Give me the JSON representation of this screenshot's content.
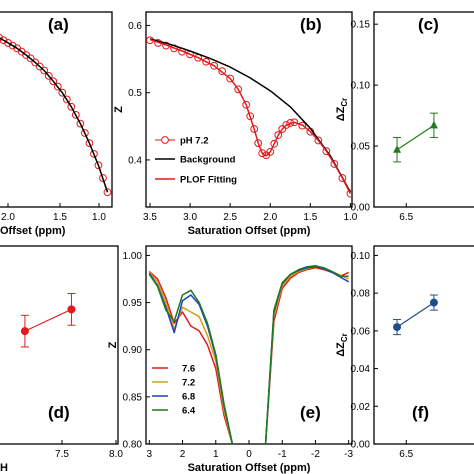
{
  "chart_data": [
    {
      "id": "a",
      "panel_label": "(a)",
      "type": "line",
      "xlabel": "Offset (ppm)",
      "xticks": [
        "2.0",
        "1.5",
        "1.0"
      ],
      "xlim": [
        2.3,
        0.95
      ],
      "ylim": [
        0.33,
        0.62
      ],
      "series": [
        {
          "name": "",
          "kind": "markers",
          "color": "#e31a1c",
          "x": [
            2.25,
            2.2,
            2.15,
            2.1,
            2.05,
            2.0,
            1.95,
            1.9,
            1.85,
            1.8,
            1.75,
            1.7,
            1.65,
            1.6,
            1.55,
            1.5,
            1.45,
            1.4,
            1.35,
            1.3,
            1.25,
            1.2,
            1.15,
            1.1,
            1.05,
            1.0
          ],
          "y": [
            0.586,
            0.582,
            0.578,
            0.574,
            0.57,
            0.566,
            0.561,
            0.556,
            0.551,
            0.545,
            0.539,
            0.533,
            0.525,
            0.517,
            0.509,
            0.5,
            0.49,
            0.479,
            0.467,
            0.454,
            0.44,
            0.425,
            0.409,
            0.392,
            0.373,
            0.352
          ]
        },
        {
          "name": "",
          "kind": "line",
          "color": "#000000",
          "x": [
            2.3,
            2.2,
            2.1,
            2.0,
            1.9,
            1.8,
            1.7,
            1.6,
            1.5,
            1.4,
            1.3,
            1.2,
            1.1,
            1.0
          ],
          "y": [
            0.59,
            0.582,
            0.574,
            0.566,
            0.556,
            0.545,
            0.533,
            0.517,
            0.5,
            0.479,
            0.454,
            0.425,
            0.392,
            0.352
          ]
        }
      ]
    },
    {
      "id": "b",
      "panel_label": "(b)",
      "type": "line",
      "ylabel": "Z",
      "xlabel": "Saturation Offset (ppm)",
      "xticks": [
        "3.5",
        "3.0",
        "2.5",
        "2.0",
        "1.5",
        "1.0"
      ],
      "yticks": [
        "0.4",
        "0.5",
        "0.6"
      ],
      "xlim": [
        3.55,
        0.98
      ],
      "ylim": [
        0.33,
        0.62
      ],
      "legend": [
        "pH 7.2",
        "Background",
        "PLOF Fitting"
      ],
      "legend_position": "bottom-left",
      "series": [
        {
          "name": "pH 7.2",
          "kind": "markers",
          "color": "#e31a1c",
          "x": [
            3.5,
            3.4,
            3.3,
            3.2,
            3.1,
            3.0,
            2.9,
            2.8,
            2.7,
            2.6,
            2.5,
            2.4,
            2.3,
            2.25,
            2.2,
            2.15,
            2.1,
            2.05,
            2.0,
            1.95,
            1.9,
            1.85,
            1.8,
            1.75,
            1.7,
            1.6,
            1.5,
            1.4,
            1.3,
            1.2,
            1.1,
            1.0
          ],
          "y": [
            0.578,
            0.574,
            0.57,
            0.566,
            0.561,
            0.557,
            0.552,
            0.546,
            0.54,
            0.532,
            0.521,
            0.505,
            0.482,
            0.465,
            0.446,
            0.425,
            0.41,
            0.407,
            0.412,
            0.424,
            0.437,
            0.446,
            0.452,
            0.455,
            0.456,
            0.451,
            0.442,
            0.429,
            0.413,
            0.394,
            0.373,
            0.35
          ]
        },
        {
          "name": "Background",
          "kind": "line",
          "color": "#000000",
          "x": [
            3.5,
            3.25,
            3.0,
            2.75,
            2.5,
            2.25,
            2.0,
            1.75,
            1.5,
            1.25,
            1.0
          ],
          "y": [
            0.58,
            0.572,
            0.562,
            0.551,
            0.538,
            0.522,
            0.503,
            0.479,
            0.447,
            0.406,
            0.352
          ]
        },
        {
          "name": "PLOF Fitting",
          "kind": "line",
          "color": "#e31a1c",
          "x": [
            3.5,
            3.3,
            3.1,
            2.9,
            2.7,
            2.5,
            2.4,
            2.3,
            2.2,
            2.15,
            2.1,
            2.05,
            2.0,
            1.95,
            1.9,
            1.85,
            1.8,
            1.7,
            1.6,
            1.5,
            1.4,
            1.3,
            1.2,
            1.1,
            1.0
          ],
          "y": [
            0.579,
            0.571,
            0.562,
            0.552,
            0.54,
            0.521,
            0.505,
            0.482,
            0.446,
            0.425,
            0.41,
            0.406,
            0.412,
            0.424,
            0.437,
            0.446,
            0.452,
            0.456,
            0.452,
            0.442,
            0.429,
            0.413,
            0.394,
            0.373,
            0.35
          ]
        }
      ]
    },
    {
      "id": "c",
      "panel_label": "(c)",
      "type": "line",
      "ylabel": "ΔZ",
      "ylabel_sub": "Cr",
      "xticks": [
        "6.5"
      ],
      "yticks": [
        "0.00",
        "0.05",
        "0.10",
        "0.15"
      ],
      "xlim": [
        6.15,
        7.3
      ],
      "ylim": [
        0.0,
        0.16
      ],
      "series": [
        {
          "name": "",
          "kind": "markers-errorbars",
          "color": "#1e7b1e",
          "marker": "triangle",
          "x": [
            6.4,
            6.8
          ],
          "y": [
            0.047,
            0.067
          ],
          "err": [
            0.01,
            0.01
          ]
        }
      ]
    },
    {
      "id": "d",
      "panel_label": "(d)",
      "type": "scatter",
      "xlabel": "H",
      "xticks": [
        "7.5",
        "8.0"
      ],
      "xlim": [
        6.9,
        8.0
      ],
      "ylim": [
        0.0,
        1.0
      ],
      "series": [
        {
          "name": "",
          "kind": "markers-errorbars",
          "color": "#e31a1c",
          "marker": "circle",
          "x": [
            7.2,
            7.6
          ],
          "y": [
            0.57,
            0.68
          ],
          "err": [
            0.08,
            0.08
          ]
        }
      ]
    },
    {
      "id": "e",
      "panel_label": "(e)",
      "type": "line",
      "ylabel": "Z",
      "xlabel": "Saturation Offset (ppm)",
      "xticks": [
        "3",
        "2",
        "1",
        "0",
        "-1",
        "-2",
        "-3"
      ],
      "yticks": [
        "0.80",
        "0.85",
        "0.90",
        "0.95",
        "1.00"
      ],
      "xlim": [
        3.1,
        -3.1
      ],
      "ylim": [
        0.8,
        1.01
      ],
      "legend": [
        "7.6",
        "7.2",
        "6.8",
        "6.4"
      ],
      "legend_position": "bottom-left",
      "x": [
        3.0,
        2.75,
        2.5,
        2.25,
        2.0,
        1.75,
        1.5,
        1.25,
        1.0,
        0.75,
        0.5,
        0.45,
        -0.45,
        -0.5,
        -0.75,
        -1.0,
        -1.25,
        -1.5,
        -1.75,
        -2.0,
        -2.25,
        -2.5,
        -2.75,
        -3.0
      ],
      "series": [
        {
          "name": "7.6",
          "color": "#e31a1c",
          "y": [
            0.983,
            0.975,
            0.955,
            0.928,
            0.94,
            0.925,
            0.92,
            0.905,
            0.88,
            0.83,
            0.8,
            0.79,
            0.79,
            0.8,
            0.93,
            0.965,
            0.976,
            0.982,
            0.985,
            0.987,
            0.985,
            0.982,
            0.978,
            0.982
          ]
        },
        {
          "name": "7.2",
          "color": "#d4a017",
          "y": [
            0.982,
            0.972,
            0.95,
            0.922,
            0.945,
            0.94,
            0.935,
            0.915,
            0.888,
            0.835,
            0.8,
            0.79,
            0.79,
            0.8,
            0.935,
            0.968,
            0.978,
            0.983,
            0.986,
            0.988,
            0.986,
            0.983,
            0.979,
            0.975
          ]
        },
        {
          "name": "6.8",
          "color": "#1f3fbf",
          "y": [
            0.981,
            0.968,
            0.945,
            0.918,
            0.952,
            0.958,
            0.948,
            0.925,
            0.893,
            0.84,
            0.8,
            0.79,
            0.79,
            0.8,
            0.94,
            0.97,
            0.98,
            0.984,
            0.987,
            0.988,
            0.986,
            0.982,
            0.977,
            0.972
          ]
        },
        {
          "name": "6.4",
          "color": "#1e7b1e",
          "y": [
            0.98,
            0.967,
            0.942,
            0.93,
            0.958,
            0.963,
            0.95,
            0.928,
            0.895,
            0.842,
            0.8,
            0.79,
            0.79,
            0.8,
            0.942,
            0.971,
            0.98,
            0.985,
            0.988,
            0.989,
            0.987,
            0.983,
            0.978,
            0.978
          ]
        }
      ]
    },
    {
      "id": "f",
      "panel_label": "(f)",
      "type": "scatter",
      "ylabel": "ΔZ",
      "ylabel_sub": "Cr",
      "xticks": [
        "6.5"
      ],
      "yticks": [
        "0.00",
        "0.02",
        "0.04",
        "0.06",
        "0.08",
        "0.10"
      ],
      "xlim": [
        6.15,
        7.3
      ],
      "ylim": [
        0.0,
        0.105
      ],
      "series": [
        {
          "name": "",
          "kind": "markers-errorbars",
          "color": "#1f4e8c",
          "marker": "circle",
          "x": [
            6.4,
            6.8
          ],
          "y": [
            0.062,
            0.075
          ],
          "err": [
            0.004,
            0.004
          ]
        }
      ]
    }
  ]
}
